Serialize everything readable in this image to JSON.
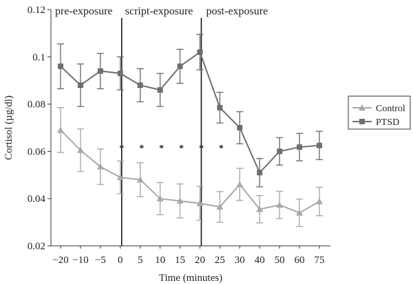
{
  "chart_data": {
    "type": "line",
    "ylabel": "Cortisol (µg/dl)",
    "xlabel": "Time (minutes)",
    "ylim": [
      0.02,
      0.12
    ],
    "yticks": [
      0.02,
      0.04,
      0.06,
      0.08,
      0.1,
      0.12
    ],
    "ytick_labels": [
      "0.02",
      "0.04",
      "0.06",
      "0.08",
      "0.1",
      "0.12"
    ],
    "x_categories": [
      "−20",
      "−10",
      "−5",
      "0",
      "5",
      "10",
      "15",
      "20",
      "25",
      "30",
      "40",
      "50",
      "60",
      "75"
    ],
    "phases": [
      "pre-exposure",
      "script-exposure",
      "post-exposure"
    ],
    "phase_divider_categories": [
      3,
      7
    ],
    "significance_marker": "*",
    "significance_categories": [
      3,
      4,
      5,
      6,
      7,
      8
    ],
    "significance_y": 0.063,
    "legend_position": "right",
    "series": [
      {
        "name": "Control",
        "marker": "triangle",
        "color": "#a8a8a8",
        "values": [
          0.069,
          0.0605,
          0.0535,
          0.049,
          0.048,
          0.04,
          0.039,
          0.038,
          0.0365,
          0.046,
          0.0355,
          0.0373,
          0.034,
          0.0388
        ],
        "errors": [
          0.0095,
          0.009,
          0.0075,
          0.007,
          0.0072,
          0.0068,
          0.0072,
          0.0072,
          0.0065,
          0.0068,
          0.0058,
          0.0058,
          0.0058,
          0.006
        ]
      },
      {
        "name": "PTSD",
        "marker": "square",
        "color": "#6e6e6e",
        "values": [
          0.096,
          0.088,
          0.094,
          0.093,
          0.088,
          0.086,
          0.096,
          0.102,
          0.0785,
          0.07,
          0.051,
          0.06,
          0.0618,
          0.0625
        ],
        "errors": [
          0.0095,
          0.009,
          0.0075,
          0.007,
          0.007,
          0.007,
          0.0072,
          0.0075,
          0.0065,
          0.0068,
          0.006,
          0.0058,
          0.0058,
          0.006
        ]
      }
    ]
  }
}
